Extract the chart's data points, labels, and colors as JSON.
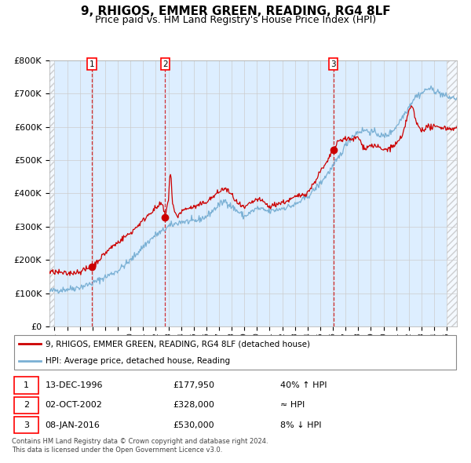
{
  "title": "9, RHIGOS, EMMER GREEN, READING, RG4 8LF",
  "subtitle": "Price paid vs. HM Land Registry's House Price Index (HPI)",
  "title_fontsize": 11,
  "subtitle_fontsize": 9,
  "ylabel_ticks": [
    "£0",
    "£100K",
    "£200K",
    "£300K",
    "£400K",
    "£500K",
    "£600K",
    "£700K",
    "£800K"
  ],
  "ytick_vals": [
    0,
    100000,
    200000,
    300000,
    400000,
    500000,
    600000,
    700000,
    800000
  ],
  "ylim": [
    0,
    800000
  ],
  "xlim_start": 1993.6,
  "xlim_end": 2025.8,
  "grid_color": "#cccccc",
  "bg_color": "#ddeeff",
  "hpi_line_color": "#7ab0d4",
  "price_line_color": "#cc0000",
  "sale1_date": 1996.95,
  "sale1_price": 177950,
  "sale1_label": "1",
  "sale2_date": 2002.75,
  "sale2_price": 328000,
  "sale2_label": "2",
  "sale3_date": 2016.03,
  "sale3_price": 530000,
  "sale3_label": "3",
  "legend_line1": "9, RHIGOS, EMMER GREEN, READING, RG4 8LF (detached house)",
  "legend_line2": "HPI: Average price, detached house, Reading",
  "table_rows": [
    {
      "num": "1",
      "date": "13-DEC-1996",
      "price": "£177,950",
      "relation": "40% ↑ HPI"
    },
    {
      "num": "2",
      "date": "02-OCT-2002",
      "price": "£328,000",
      "relation": "≈ HPI"
    },
    {
      "num": "3",
      "date": "08-JAN-2016",
      "price": "£530,000",
      "relation": "8% ↓ HPI"
    }
  ],
  "footer1": "Contains HM Land Registry data © Crown copyright and database right 2024.",
  "footer2": "This data is licensed under the Open Government Licence v3.0."
}
